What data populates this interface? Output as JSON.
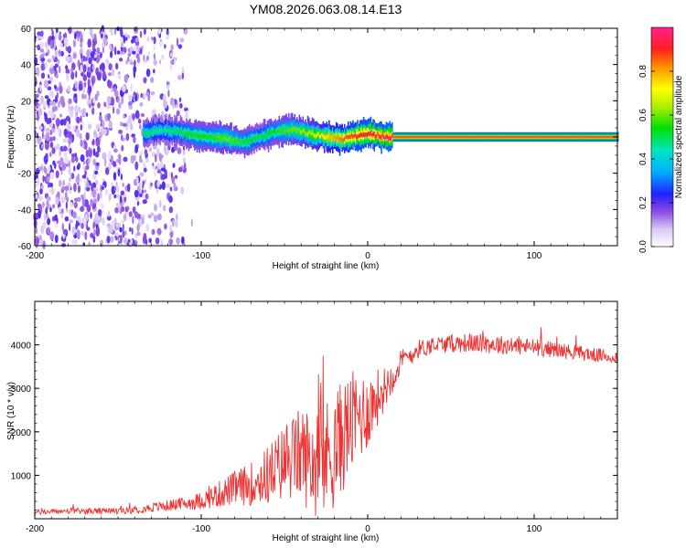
{
  "title": "YM08.2026.063.08.14.E13",
  "chart_data": [
    {
      "type": "heatmap",
      "xlabel": "Height of straight line (km)",
      "ylabel": "Frequency (Hz)",
      "xlim": [
        -200,
        150
      ],
      "ylim": [
        -60,
        60
      ],
      "xticks": [
        -200,
        -100,
        0,
        100
      ],
      "yticks": [
        -60,
        -40,
        -20,
        0,
        20,
        40,
        60
      ],
      "colorbar": {
        "label": "Normalized spectral amplitude",
        "range": [
          0,
          1
        ],
        "ticks": [
          0.0,
          0.2,
          0.4,
          0.6,
          0.8
        ],
        "tick_labels": [
          "0.0",
          "0.2",
          "0.4",
          "0.6",
          "0.8"
        ]
      },
      "ridge": {
        "x": [
          -135,
          -125,
          -115,
          -105,
          -95,
          -85,
          -75,
          -65,
          -55,
          -45,
          -35,
          -25,
          -15,
          -5,
          0,
          10,
          20,
          50,
          100,
          150
        ],
        "frequency": [
          2,
          4,
          3,
          1,
          0,
          -1,
          -3,
          0,
          3,
          4,
          2,
          0,
          -1,
          1,
          2,
          0,
          0,
          0,
          0,
          0
        ],
        "amplitude": [
          0.5,
          0.45,
          0.5,
          0.55,
          0.55,
          0.6,
          0.55,
          0.5,
          0.55,
          0.6,
          0.65,
          0.75,
          0.85,
          0.9,
          0.92,
          0.95,
          0.97,
          0.97,
          0.97,
          0.97
        ]
      },
      "noise_region": {
        "x_range": [
          -200,
          -105
        ],
        "amplitude": 0.15
      }
    },
    {
      "type": "line",
      "xlabel": "Height of straight line (km)",
      "ylabel": "SNR (10 * v/v)",
      "xlim": [
        -200,
        150
      ],
      "ylim": [
        0,
        5000
      ],
      "xticks": [
        -200,
        -100,
        0,
        100
      ],
      "yticks": [
        1000,
        2000,
        3000,
        4000
      ],
      "series": [
        {
          "name": "SNR",
          "color": "#ee3333",
          "x": [
            -200,
            -180,
            -160,
            -140,
            -125,
            -110,
            -100,
            -90,
            -80,
            -70,
            -60,
            -50,
            -40,
            -30,
            -20,
            -10,
            0,
            10,
            20,
            30,
            40,
            60,
            80,
            100,
            120,
            140,
            150
          ],
          "y": [
            150,
            180,
            170,
            200,
            280,
            350,
            420,
            550,
            700,
            800,
            1000,
            1300,
            1500,
            1200,
            1600,
            2200,
            2500,
            3000,
            3600,
            3900,
            4000,
            4050,
            4000,
            3950,
            3850,
            3750,
            3700
          ],
          "noise_amplitude": [
            60,
            70,
            70,
            80,
            120,
            150,
            200,
            300,
            400,
            500,
            700,
            900,
            1100,
            1300,
            1400,
            1200,
            900,
            500,
            300,
            220,
            200,
            220,
            220,
            200,
            180,
            160,
            150
          ]
        }
      ]
    }
  ]
}
